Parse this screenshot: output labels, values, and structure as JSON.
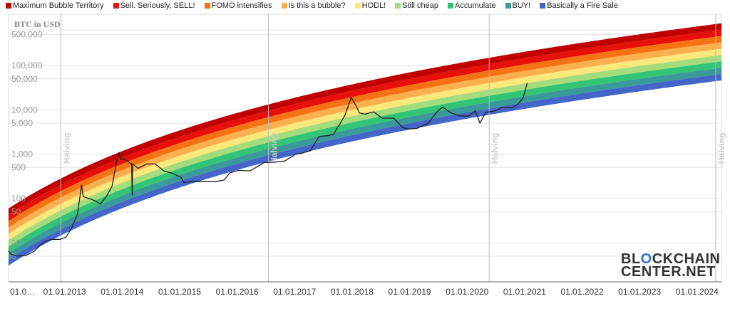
{
  "chart_data": {
    "type": "line",
    "title": "",
    "ylabel": "BTC in USD",
    "yscale": "log",
    "ylim": [
      1.5,
      1000000
    ],
    "xlim": [
      2012.0,
      2024.4
    ],
    "y_ticks": [
      {
        "value": 500000,
        "label": "500,000"
      },
      {
        "value": 100000,
        "label": "100,000"
      },
      {
        "value": 50000,
        "label": "50,000"
      },
      {
        "value": 10000,
        "label": "10,000"
      },
      {
        "value": 5000,
        "label": "5,000"
      },
      {
        "value": 1000,
        "label": "1,000"
      },
      {
        "value": 500,
        "label": "500"
      },
      {
        "value": 100,
        "label": "100"
      },
      {
        "value": 50,
        "label": "50"
      },
      {
        "value": 10,
        "label": "10"
      },
      {
        "value": 5,
        "label": "5"
      }
    ],
    "x_ticks": [
      {
        "value": 2012.0,
        "label": "01.0…"
      },
      {
        "value": 2013.0,
        "label": "01.01.2013"
      },
      {
        "value": 2014.0,
        "label": "01.01.2014"
      },
      {
        "value": 2015.0,
        "label": "01.01.2015"
      },
      {
        "value": 2016.0,
        "label": "01.01.2016"
      },
      {
        "value": 2017.0,
        "label": "01.01.2017"
      },
      {
        "value": 2018.0,
        "label": "01.01.2018"
      },
      {
        "value": 2019.0,
        "label": "01.01.2019"
      },
      {
        "value": 2020.0,
        "label": "01.01.2020"
      },
      {
        "value": 2021.0,
        "label": "01.01.2021"
      },
      {
        "value": 2022.0,
        "label": "01.01.2022"
      },
      {
        "value": 2023.0,
        "label": "01.01.2023"
      },
      {
        "value": 2024.0,
        "label": "01.01.2024"
      }
    ],
    "annotations": [
      {
        "x": 2012.91,
        "label": "Halving"
      },
      {
        "x": 2016.52,
        "label": "Halving"
      },
      {
        "x": 2020.36,
        "label": "Halving"
      },
      {
        "x": 2024.3,
        "label": "Halving"
      }
    ],
    "legend_position": "top",
    "bands": [
      {
        "name": "Maximum Bubble Territory",
        "color": "#c00000"
      },
      {
        "name": "Sell. Seriously, SELL!",
        "color": "#e8100a"
      },
      {
        "name": "FOMO intensifies",
        "color": "#f57314"
      },
      {
        "name": "Is this a bubble?",
        "color": "#fbb04f"
      },
      {
        "name": "HODL!",
        "color": "#fbe87a"
      },
      {
        "name": "Still cheap",
        "color": "#a4dc7c"
      },
      {
        "name": "Accumulate",
        "color": "#34c476"
      },
      {
        "name": "BUY!",
        "color": "#3a9a9a"
      },
      {
        "name": "Basically a Fire Sale",
        "color": "#4466c8"
      }
    ],
    "series": [
      {
        "name": "BTC price",
        "color": "#222222",
        "x": [
          2012.0,
          2012.05,
          2012.15,
          2012.3,
          2012.45,
          2012.55,
          2012.65,
          2012.75,
          2012.9,
          2013.0,
          2013.1,
          2013.2,
          2013.27,
          2013.3,
          2013.4,
          2013.5,
          2013.6,
          2013.7,
          2013.8,
          2013.88,
          2013.92,
          2013.95,
          2014.0,
          2014.1,
          2014.14,
          2014.15,
          2014.16,
          2014.25,
          2014.4,
          2014.55,
          2014.7,
          2014.85,
          2015.0,
          2015.05,
          2015.2,
          2015.4,
          2015.6,
          2015.75,
          2015.85,
          2016.0,
          2016.2,
          2016.45,
          2016.55,
          2016.8,
          2017.0,
          2017.1,
          2017.25,
          2017.4,
          2017.55,
          2017.65,
          2017.75,
          2017.85,
          2017.96,
          2018.05,
          2018.1,
          2018.2,
          2018.35,
          2018.5,
          2018.7,
          2018.85,
          2018.95,
          2019.1,
          2019.3,
          2019.45,
          2019.55,
          2019.7,
          2019.85,
          2020.0,
          2020.12,
          2020.2,
          2020.3,
          2020.45,
          2020.6,
          2020.75,
          2020.85,
          2020.95,
          2021.02
        ],
        "y": [
          6.5,
          5.5,
          5,
          5.2,
          6.5,
          9,
          11,
          12,
          12,
          13.5,
          22,
          45,
          200,
          110,
          100,
          90,
          75,
          110,
          190,
          700,
          1100,
          750,
          800,
          650,
          600,
          120,
          600,
          480,
          600,
          600,
          420,
          370,
          300,
          230,
          240,
          240,
          240,
          260,
          380,
          430,
          420,
          650,
          650,
          700,
          1000,
          1050,
          1200,
          2500,
          2600,
          2800,
          4500,
          7500,
          19000,
          12000,
          8500,
          8000,
          9000,
          6500,
          6500,
          4000,
          3700,
          3800,
          5000,
          9000,
          11500,
          8500,
          7300,
          7200,
          9500,
          5000,
          8800,
          9400,
          11500,
          11000,
          13000,
          18500,
          40000
        ]
      }
    ]
  },
  "watermark": {
    "line1_pre": "BL",
    "line1_o": "O",
    "line1_post": "CKCHAIN",
    "line2": "CENTER.NET"
  }
}
